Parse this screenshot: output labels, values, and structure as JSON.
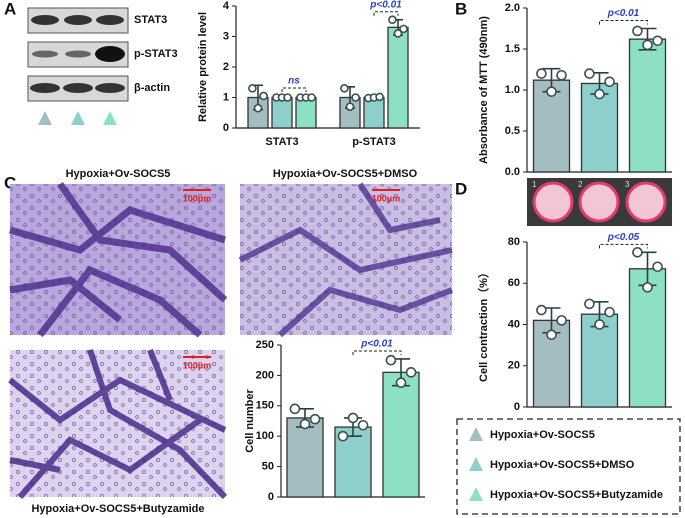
{
  "panels": [
    "A",
    "B",
    "C",
    "D"
  ],
  "blot": {
    "labels": [
      "STAT3",
      "p-STAT3",
      "β-actin"
    ]
  },
  "images": {
    "titles": [
      "Hypoxia+Ov-SOCS5",
      "Hypoxia+Ov-SOCS5+DMSO",
      "Hypoxia+Ov-SOCS5+Butyzamide"
    ],
    "scale": "100μm"
  },
  "gel": {
    "labels": [
      "1",
      "2",
      "3"
    ]
  },
  "chart_data": [
    {
      "type": "bar",
      "y_label": "Relative protein level",
      "categories": [
        "STAT3",
        "p-STAT3"
      ],
      "series": [
        {
          "color": "#a3bdc1",
          "values": [
            1,
            1
          ],
          "errors": [
            0.4,
            0.35
          ],
          "points": [
            [
              1.3,
              0.65,
              1.05
            ],
            [
              1.3,
              0.7,
              1.0
            ]
          ]
        },
        {
          "color": "#8ecfcc",
          "values": [
            1,
            1
          ],
          "errors": [
            0.05,
            0.05
          ],
          "points": [
            [
              1,
              1,
              1
            ],
            [
              0.98,
              1.0,
              1.02
            ]
          ]
        },
        {
          "color": "#8ee0c4",
          "values": [
            1,
            3.3
          ],
          "errors": [
            0.05,
            0.25
          ],
          "points": [
            [
              1,
              1,
              1
            ],
            [
              3.55,
              3.1,
              3.25
            ]
          ]
        }
      ],
      "annotations": [
        "ns",
        "p<0.01"
      ],
      "ylim": [
        0,
        4
      ],
      "yticks": [
        0,
        1,
        2,
        3,
        4
      ]
    },
    {
      "type": "bar",
      "y_label": "Absorbance of MTT (490nm)",
      "categories": [
        null
      ],
      "series": [
        {
          "name": "Hypoxia+Ov-SOCS5",
          "color": "#a3bdc1",
          "values": [
            1.12
          ],
          "errors": [
            0.14
          ],
          "points": [
            [
              1.2,
              0.98,
              1.18
            ]
          ]
        },
        {
          "name": "Hypoxia+Ov-SOCS5+DMSO",
          "color": "#8ecfcc",
          "values": [
            1.08
          ],
          "errors": [
            0.13
          ],
          "points": [
            [
              1.2,
              0.95,
              1.1
            ]
          ]
        },
        {
          "name": "Hypoxia+Ov-SOCS5+Butyzamide",
          "color": "#8ee0c4",
          "values": [
            1.62
          ],
          "errors": [
            0.13
          ],
          "points": [
            [
              1.72,
              1.55,
              1.6
            ]
          ]
        }
      ],
      "annotations": [
        "p<0.01"
      ],
      "ylim": [
        0,
        2
      ],
      "yticks": [
        {
          "value": 0,
          "label": "0.0"
        },
        {
          "value": 0.5,
          "label": "0.5"
        },
        {
          "value": 1,
          "label": "1.0"
        },
        {
          "value": 1.5,
          "label": "1.5"
        },
        {
          "value": 2,
          "label": "2.0"
        }
      ]
    },
    {
      "type": "bar",
      "y_label": "Cell number",
      "categories": [
        null
      ],
      "series": [
        {
          "color": "#a3bdc1",
          "values": [
            130
          ],
          "errors": [
            15
          ],
          "points": [
            [
              145,
              120,
              128
            ]
          ]
        },
        {
          "color": "#8ecfcc",
          "values": [
            115
          ],
          "errors": [
            15
          ],
          "points": [
            [
              100,
              130,
              118
            ]
          ]
        },
        {
          "color": "#8ee0c4",
          "values": [
            205
          ],
          "errors": [
            22
          ],
          "points": [
            [
              225,
              188,
              205
            ]
          ]
        }
      ],
      "annotations": [
        "p<0.01"
      ],
      "ylim": [
        0,
        250
      ],
      "yticks": [
        0,
        50,
        100,
        150,
        200,
        250
      ]
    },
    {
      "type": "bar",
      "y_label": "Cell contraction（%）",
      "categories": [
        null
      ],
      "series": [
        {
          "color": "#a3bdc1",
          "values": [
            42
          ],
          "errors": [
            6
          ],
          "points": [
            [
              47,
              35,
              42
            ]
          ]
        },
        {
          "color": "#8ecfcc",
          "values": [
            45
          ],
          "errors": [
            6
          ],
          "points": [
            [
              50,
              40,
              46
            ]
          ]
        },
        {
          "color": "#8ee0c4",
          "values": [
            67
          ],
          "errors": [
            8
          ],
          "points": [
            [
              75,
              58,
              68
            ]
          ]
        }
      ],
      "annotations": [
        "p<0.05"
      ],
      "ylim": [
        0,
        80
      ],
      "yticks": [
        0,
        20,
        40,
        60,
        80
      ]
    }
  ]
}
